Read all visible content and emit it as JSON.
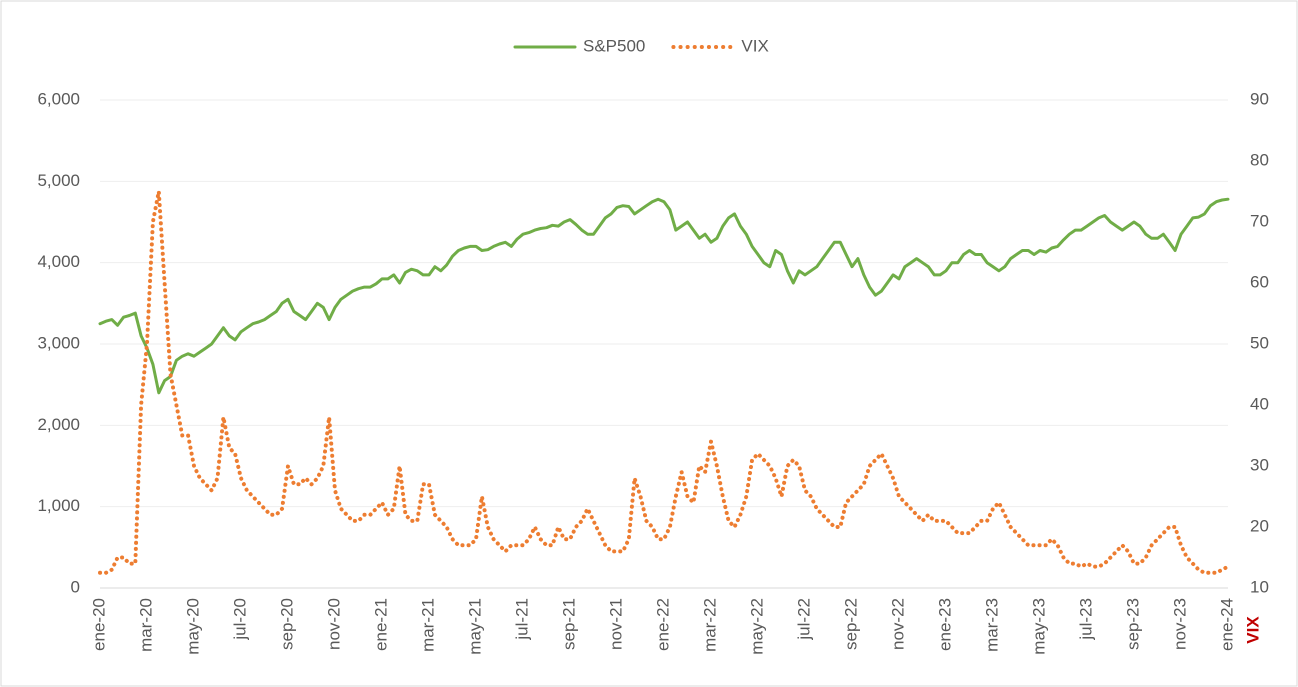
{
  "chart_data": {
    "type": "line",
    "categories": [
      "ene-20",
      null,
      null,
      null,
      null,
      null,
      null,
      null,
      "mar-20",
      null,
      null,
      null,
      null,
      null,
      null,
      null,
      "may-20",
      null,
      null,
      null,
      null,
      null,
      null,
      null,
      "jul-20",
      null,
      null,
      null,
      null,
      null,
      null,
      null,
      "sep-20",
      null,
      null,
      null,
      null,
      null,
      null,
      null,
      "nov-20",
      null,
      null,
      null,
      null,
      null,
      null,
      null,
      "ene-21",
      null,
      null,
      null,
      null,
      null,
      null,
      null,
      "mar-21",
      null,
      null,
      null,
      null,
      null,
      null,
      null,
      "may-21",
      null,
      null,
      null,
      null,
      null,
      null,
      null,
      "jul-21",
      null,
      null,
      null,
      null,
      null,
      null,
      null,
      "sep-21",
      null,
      null,
      null,
      null,
      null,
      null,
      null,
      "nov-21",
      null,
      null,
      null,
      null,
      null,
      null,
      null,
      "ene-22",
      null,
      null,
      null,
      null,
      null,
      null,
      null,
      "mar-22",
      null,
      null,
      null,
      null,
      null,
      null,
      null,
      "may-22",
      null,
      null,
      null,
      null,
      null,
      null,
      null,
      "jul-22",
      null,
      null,
      null,
      null,
      null,
      null,
      null,
      "sep-22",
      null,
      null,
      null,
      null,
      null,
      null,
      null,
      "nov-22",
      null,
      null,
      null,
      null,
      null,
      null,
      null,
      "ene-23",
      null,
      null,
      null,
      null,
      null,
      null,
      null,
      "mar-23",
      null,
      null,
      null,
      null,
      null,
      null,
      null,
      "may-23",
      null,
      null,
      null,
      null,
      null,
      null,
      null,
      "jul-23",
      null,
      null,
      null,
      null,
      null,
      null,
      null,
      "sep-23",
      null,
      null,
      null,
      null,
      null,
      null,
      null,
      "nov-23",
      null,
      null,
      null,
      null,
      null,
      null,
      null,
      "ene-24"
    ],
    "series": [
      {
        "name": "S&P500",
        "color": "#70ad47",
        "style": "solid",
        "values": [
          3250,
          3280,
          3300,
          3230,
          3330,
          3350,
          3380,
          3100,
          2950,
          2750,
          2400,
          2550,
          2600,
          2800,
          2850,
          2880,
          2850,
          2900,
          2950,
          3000,
          3100,
          3200,
          3100,
          3050,
          3150,
          3200,
          3250,
          3270,
          3300,
          3350,
          3400,
          3500,
          3550,
          3400,
          3350,
          3300,
          3400,
          3500,
          3450,
          3300,
          3450,
          3550,
          3600,
          3650,
          3680,
          3700,
          3700,
          3740,
          3800,
          3800,
          3850,
          3750,
          3880,
          3920,
          3900,
          3850,
          3850,
          3950,
          3900,
          3970,
          4080,
          4150,
          4180,
          4200,
          4200,
          4150,
          4160,
          4200,
          4230,
          4250,
          4200,
          4290,
          4350,
          4370,
          4400,
          4420,
          4430,
          4460,
          4450,
          4500,
          4530,
          4470,
          4400,
          4350,
          4350,
          4450,
          4550,
          4600,
          4680,
          4700,
          4690,
          4600,
          4650,
          4700,
          4750,
          4780,
          4750,
          4650,
          4400,
          4450,
          4500,
          4400,
          4300,
          4350,
          4250,
          4300,
          4450,
          4550,
          4600,
          4450,
          4350,
          4200,
          4100,
          4000,
          3950,
          4150,
          4100,
          3900,
          3750,
          3900,
          3850,
          3900,
          3950,
          4050,
          4150,
          4250,
          4250,
          4100,
          3950,
          4050,
          3850,
          3700,
          3600,
          3650,
          3750,
          3850,
          3800,
          3950,
          4000,
          4050,
          4000,
          3950,
          3850,
          3850,
          3900,
          4000,
          4000,
          4100,
          4150,
          4100,
          4100,
          4000,
          3950,
          3900,
          3950,
          4050,
          4100,
          4150,
          4150,
          4100,
          4150,
          4130,
          4180,
          4200,
          4280,
          4350,
          4400,
          4400,
          4450,
          4500,
          4550,
          4580,
          4500,
          4450,
          4400,
          4450,
          4500,
          4450,
          4350,
          4300,
          4300,
          4350,
          4250,
          4150,
          4350,
          4450,
          4550,
          4560,
          4600,
          4700,
          4750,
          4770,
          4780
        ]
      },
      {
        "name": "VIX",
        "color": "#ed7d31",
        "style": "dotted",
        "axis": "y2",
        "values": [
          12.5,
          12.5,
          13,
          15,
          15,
          14,
          14,
          40,
          50,
          70,
          75,
          60,
          45,
          40,
          35,
          35,
          30,
          28,
          27,
          26,
          28,
          38,
          33,
          32,
          28,
          26,
          25,
          24,
          23,
          22,
          22,
          23,
          30,
          27,
          27,
          28,
          27,
          28,
          30,
          38,
          26,
          23,
          22,
          21,
          21,
          22,
          22,
          23,
          24,
          22,
          23,
          30,
          22,
          21,
          21,
          27,
          27,
          22,
          21,
          20,
          18,
          17,
          17,
          17,
          18,
          25,
          20,
          18,
          17,
          16,
          17,
          17,
          17,
          18,
          20,
          18,
          17,
          17,
          20,
          18,
          18,
          20,
          21,
          23,
          21,
          19,
          17,
          16,
          16,
          16,
          18,
          28,
          25,
          21,
          20,
          18,
          18,
          20,
          25,
          29,
          25,
          24,
          30,
          29,
          34,
          30,
          25,
          21,
          20,
          22,
          25,
          31,
          32,
          31,
          30,
          28,
          25,
          30,
          31,
          30,
          26,
          25,
          23,
          22,
          21,
          20,
          20,
          24,
          25,
          26,
          27,
          30,
          31,
          32,
          30,
          28,
          25,
          24,
          23,
          22,
          21,
          22,
          21,
          21,
          21,
          20,
          19,
          19,
          19,
          20,
          21,
          21,
          23,
          24,
          22,
          20,
          19,
          18,
          17,
          17,
          17,
          17,
          18,
          17,
          15,
          14,
          14,
          13.5,
          14,
          13.5,
          13.5,
          14,
          15,
          16,
          17,
          16,
          14,
          14,
          15,
          17,
          18,
          19,
          20,
          20,
          17,
          15,
          14,
          13,
          12.5,
          12.5,
          12.5,
          13,
          13.5
        ]
      }
    ],
    "ylim": [
      0,
      6000
    ],
    "yticks": [
      0,
      {
        "value": 1000,
        "label": "1,000"
      },
      {
        "value": 2000,
        "label": "2,000"
      },
      {
        "value": 3000,
        "label": "3,000"
      },
      {
        "value": 4000,
        "label": "4,000"
      },
      {
        "value": 5000,
        "label": "5,000"
      },
      {
        "value": 6000,
        "label": "6,000"
      }
    ],
    "y2lim": [
      10,
      90
    ],
    "y2ticks": [
      10,
      20,
      30,
      40,
      50,
      60,
      70,
      80,
      90
    ],
    "y2label": "VIX",
    "grid": true,
    "legend": "top"
  }
}
